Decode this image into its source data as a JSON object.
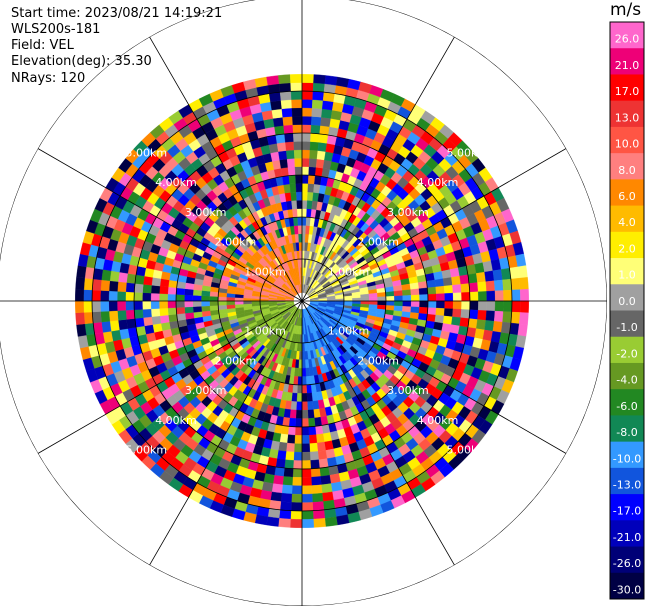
{
  "info": {
    "start_time": "Start time: 2023/08/21 14:19:21",
    "instrument": "WLS200s-181",
    "field": "Field: VEL",
    "elevation": "Elevation(deg): 35.30",
    "nrays": "NRays: 120"
  },
  "colorbar": {
    "unit": "m/s",
    "bins": [
      {
        "label": "26.0",
        "color": "#ff66cc"
      },
      {
        "label": "21.0",
        "color": "#ee0077"
      },
      {
        "label": "17.0",
        "color": "#ff0000"
      },
      {
        "label": "13.0",
        "color": "#ee3333"
      },
      {
        "label": "10.0",
        "color": "#ff5544"
      },
      {
        "label": "8.0",
        "color": "#ff7f7f"
      },
      {
        "label": "6.0",
        "color": "#ff8800"
      },
      {
        "label": "4.0",
        "color": "#ffbb00"
      },
      {
        "label": "2.0",
        "color": "#ffee00"
      },
      {
        "label": "1.0",
        "color": "#ffff77"
      },
      {
        "label": "0.0",
        "color": "#a0a0a0"
      },
      {
        "label": "-1.0",
        "color": "#666666"
      },
      {
        "label": "-2.0",
        "color": "#99cc33"
      },
      {
        "label": "-4.0",
        "color": "#669922"
      },
      {
        "label": "-6.0",
        "color": "#228822"
      },
      {
        "label": "-8.0",
        "color": "#118855"
      },
      {
        "label": "-10.0",
        "color": "#3399ff"
      },
      {
        "label": "-13.0",
        "color": "#1155dd"
      },
      {
        "label": "-17.0",
        "color": "#0000ff"
      },
      {
        "label": "-21.0",
        "color": "#0000bb"
      },
      {
        "label": "-26.0",
        "color": "#000077"
      },
      {
        "label": "-30.0",
        "color": "#000044"
      }
    ]
  },
  "chart_data": {
    "type": "heatmap",
    "projection": "polar-ppi",
    "field": "VEL",
    "nrays": 120,
    "range_rings": [
      {
        "label": "1.00km"
      },
      {
        "label": "2.00km"
      },
      {
        "label": "3.00km"
      },
      {
        "label": "4.00km"
      },
      {
        "label": "5.00km"
      }
    ],
    "max_range_km": 5.4,
    "near_field_velocity_m_s": {
      "north_west_quadrant": 8.0,
      "north_east_quadrant": 1.0,
      "south_west_quadrant": -2.0,
      "south_east_quadrant": -10.0
    },
    "grid": true
  }
}
